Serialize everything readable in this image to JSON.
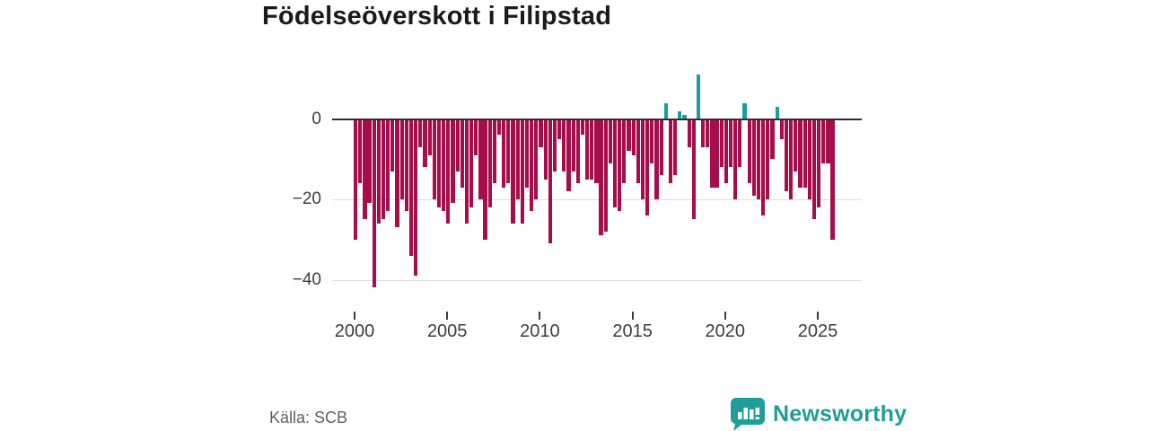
{
  "title": "Födelseöverskott i Filipstad",
  "source": "Källa: SCB",
  "brand": {
    "name": "Newsworthy",
    "color": "#1f9e99"
  },
  "chart_data": {
    "type": "bar",
    "title": "Födelseöverskott i Filipstad",
    "xlabel": "",
    "ylabel": "",
    "period": "quarterly",
    "start_year": 2000,
    "x_tick_years": [
      2000,
      2005,
      2010,
      2015,
      2020,
      2025
    ],
    "x_tick_labels": [
      "2000",
      "2005",
      "2010",
      "2015",
      "2020",
      "2025"
    ],
    "y_ticks": [
      0,
      -20,
      -40
    ],
    "y_tick_labels": [
      "0",
      "−20",
      "−40"
    ],
    "ylim": [
      -44,
      13
    ],
    "grid": "horizontal",
    "colors": {
      "negative": "#a60d4a",
      "positive": "#16a09c",
      "axis": "#2f2f2f",
      "grid": "#dcdcdc"
    },
    "legend": "none",
    "series": [
      {
        "name": "Födelseöverskott",
        "values": [
          -30,
          -16,
          -25,
          -21,
          -42,
          -26,
          -25,
          -23,
          -13,
          -27,
          -20,
          -23,
          -34,
          -39,
          -7,
          -12,
          -9,
          -20,
          -22,
          -23,
          -26,
          -21,
          -13,
          -17,
          -26,
          -22,
          -9,
          -20,
          -30,
          -22,
          -16,
          -4,
          -17,
          -16,
          -26,
          -20,
          -26,
          -17,
          -23,
          -20,
          -7,
          -15,
          -31,
          -13,
          -5,
          -13,
          -18,
          -13,
          -16,
          -4,
          -15,
          -15,
          -16,
          -29,
          -28,
          -11,
          -22,
          -23,
          -16,
          -8,
          -9,
          -16,
          -20,
          -24,
          -11,
          -20,
          -14,
          4,
          -16,
          -14,
          2,
          1,
          -7,
          -25,
          11,
          -7,
          -7,
          -17,
          -17,
          -12,
          -16,
          -12,
          -20,
          -12,
          4,
          -16,
          -19,
          -20,
          -24,
          -20,
          -10,
          3,
          -5,
          -18,
          -20,
          -13,
          -17,
          -17,
          -20,
          -25,
          -22,
          -11,
          -11,
          -30
        ]
      }
    ]
  },
  "layout_note": ""
}
